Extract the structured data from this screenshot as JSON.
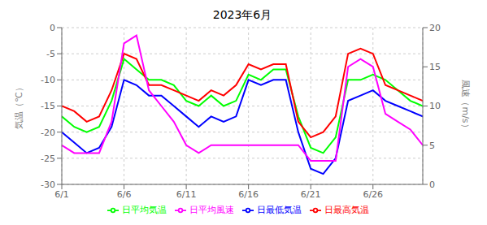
{
  "chart_data": {
    "type": "line",
    "title": "2023年6月",
    "x": [
      1,
      2,
      3,
      4,
      5,
      6,
      7,
      8,
      9,
      10,
      11,
      12,
      13,
      14,
      15,
      16,
      17,
      18,
      19,
      20,
      21,
      22,
      23,
      24,
      25,
      26,
      27,
      28,
      29,
      30
    ],
    "series": [
      {
        "name": "日平均気温",
        "color": "#00ff00",
        "values": [
          -17,
          -19,
          -20,
          -19,
          -14,
          -6,
          -8,
          -10,
          -10,
          -11,
          -14,
          -15,
          -13,
          -15,
          -14,
          -9,
          -10,
          -8,
          -8,
          -17,
          -23,
          -24,
          -21,
          -10,
          -10,
          -9,
          -10,
          -12,
          -14,
          -15
        ]
      },
      {
        "name": "日最高気温",
        "color": "#ff0000",
        "values": [
          -15,
          -16,
          -18,
          -17,
          -12,
          -5,
          -6,
          -11,
          -11,
          -12,
          -13,
          -14,
          -12,
          -13,
          -11,
          -7,
          -8,
          -7,
          -7,
          -18,
          -21,
          -20,
          -17,
          -5,
          -4,
          -5,
          -11,
          -12,
          -13,
          -14
        ]
      },
      {
        "name": "日最低気温",
        "color": "#0000ff",
        "values": [
          -20,
          -22,
          -24,
          -23,
          -19,
          -10,
          -11,
          -13,
          -13,
          -15,
          -17,
          -19,
          -17,
          -18,
          -17,
          -10,
          -11,
          -10,
          -10,
          -20,
          -27,
          -28,
          -25,
          -14,
          -13,
          -12,
          -14,
          -15,
          -16,
          -17
        ]
      },
      {
        "name": "日平均風速",
        "color": "#ff00ff",
        "axis": "y2",
        "values": [
          5,
          4,
          4,
          4,
          8,
          18,
          19,
          12,
          10,
          8,
          5,
          4,
          5,
          5,
          5,
          5,
          5,
          5,
          5,
          5,
          3,
          3,
          3,
          15,
          16,
          15,
          9,
          8,
          7,
          5
        ]
      }
    ],
    "xlim": [
      1,
      30
    ],
    "xticks": [
      {
        "value": 1,
        "label": "6/1"
      },
      {
        "value": 6,
        "label": "6/6"
      },
      {
        "value": 11,
        "label": "6/11"
      },
      {
        "value": 16,
        "label": "6/16"
      },
      {
        "value": 21,
        "label": "6/21"
      },
      {
        "value": 26,
        "label": "6/26"
      }
    ],
    "ylim": [
      -30,
      0
    ],
    "yticks": [
      0,
      -5,
      -10,
      -15,
      -20,
      -25,
      -30
    ],
    "y2lim": [
      0,
      20
    ],
    "y2ticks": [
      0,
      5,
      10,
      15,
      20
    ],
    "ylabel": "気温（℃）",
    "y2label": "風速（m/s）",
    "grid": true,
    "legend": "bottom"
  }
}
